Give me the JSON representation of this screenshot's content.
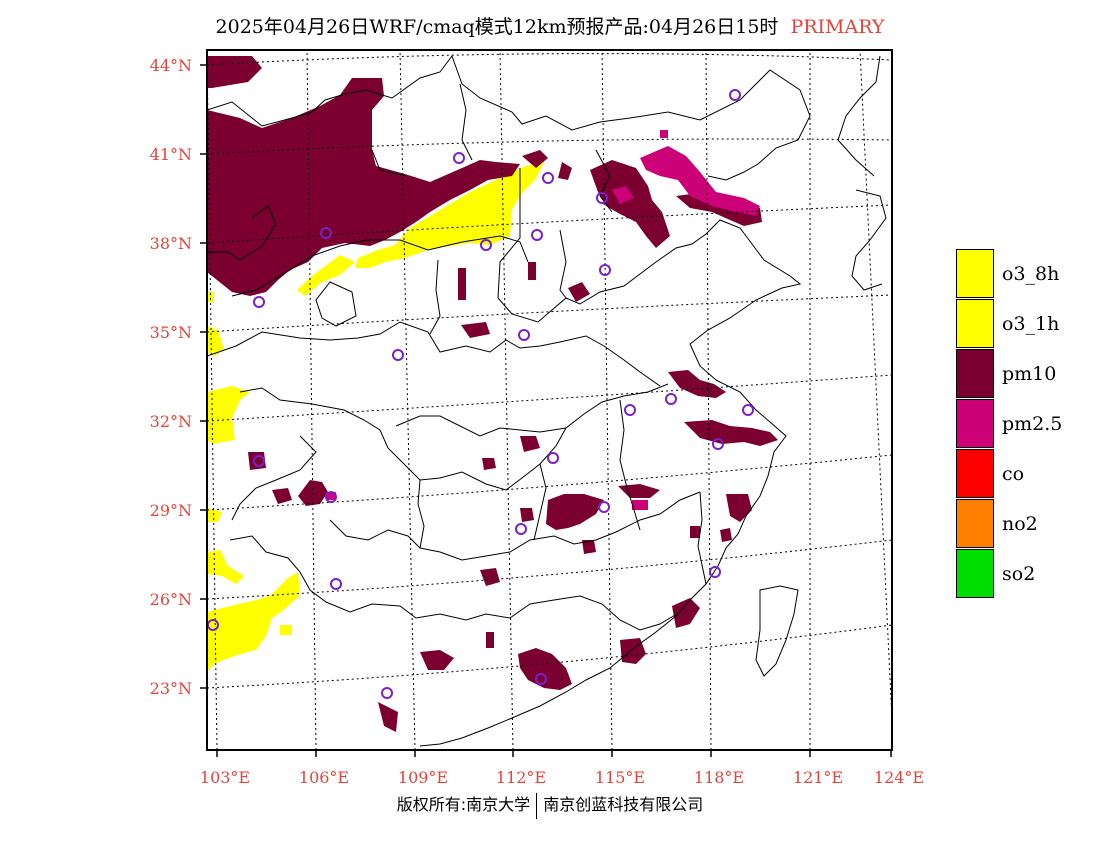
{
  "header": {
    "title": "2025年04月26日WRF/cmaq模式12km预报产品:04月26日15时",
    "primary_label": "PRIMARY"
  },
  "axes": {
    "lat_labels": [
      "44°N",
      "41°N",
      "38°N",
      "35°N",
      "32°N",
      "29°N",
      "26°N",
      "23°N"
    ],
    "lon_labels": [
      "103°E",
      "106°E",
      "109°E",
      "112°E",
      "115°E",
      "118°E",
      "121°E",
      "124°E"
    ]
  },
  "legend": {
    "items": [
      {
        "label": "o3_8h",
        "color": "#ffff00"
      },
      {
        "label": "o3_1h",
        "color": "#ffff00"
      },
      {
        "label": "pm10",
        "color": "#7b0030"
      },
      {
        "label": "pm2.5",
        "color": "#cc0077"
      },
      {
        "label": "co",
        "color": "#ff0000"
      },
      {
        "label": "no2",
        "color": "#ff7f00"
      },
      {
        "label": "so2",
        "color": "#00dd00"
      }
    ]
  },
  "footer": {
    "left": "版权所有:南京大学",
    "right": "南京创蓝科技有限公司"
  },
  "colors": {
    "axis_label": "#e8423a",
    "pm10": "#7b0030",
    "pm25": "#cc0077",
    "o3": "#ffff00",
    "station": "#7a1fd0"
  }
}
